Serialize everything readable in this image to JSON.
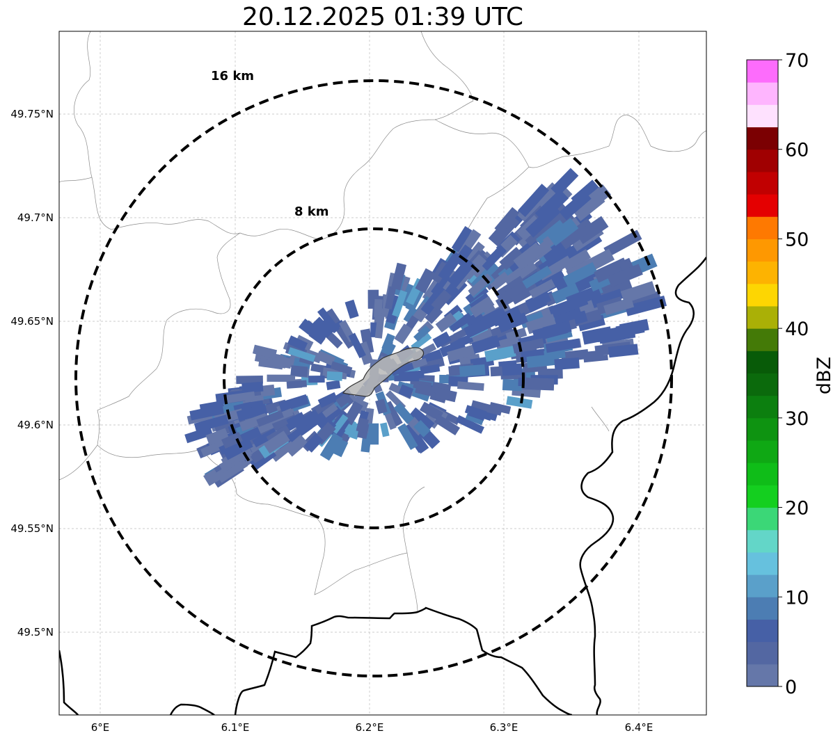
{
  "title": "20.12.2025 01:39 UTC",
  "map": {
    "lon_range": [
      5.97,
      6.45
    ],
    "lat_range": [
      49.46,
      49.79
    ],
    "lon_ticks": [
      "6°E",
      "6.1°E",
      "6.2°E",
      "6.3°E",
      "6.4°E"
    ],
    "lat_ticks": [
      "49.75°N",
      "49.7°N",
      "49.65°N",
      "49.6°N",
      "49.55°N",
      "49.5°N"
    ],
    "range_rings": [
      {
        "label": "16 km",
        "radius_km": 16
      },
      {
        "label": "8 km",
        "radius_km": 8
      }
    ],
    "radar_center": {
      "lon": 6.2,
      "lat": 49.623
    }
  },
  "colorbar": {
    "label": "dBZ",
    "ticks": [
      "0",
      "10",
      "20",
      "30",
      "40",
      "50",
      "60",
      "70"
    ],
    "range": [
      0,
      70
    ],
    "step": 2.5,
    "colors": [
      "#6577a9",
      "#5367a2",
      "#4660a6",
      "#4c7db3",
      "#5aa0ca",
      "#66c1de",
      "#63d6c8",
      "#3bd777",
      "#14cf1f",
      "#0fbd18",
      "#0fa814",
      "#0e9311",
      "#0c7f0f",
      "#0b6a0c",
      "#085b08",
      "#447a07",
      "#aab006",
      "#fdd602",
      "#fdb301",
      "#fe9801",
      "#fe7901",
      "#e40001",
      "#c10001",
      "#a00001",
      "#7b0002",
      "#fee1fe",
      "#feb5fe",
      "#fd6cfc",
      "#ee31ee"
    ]
  }
}
